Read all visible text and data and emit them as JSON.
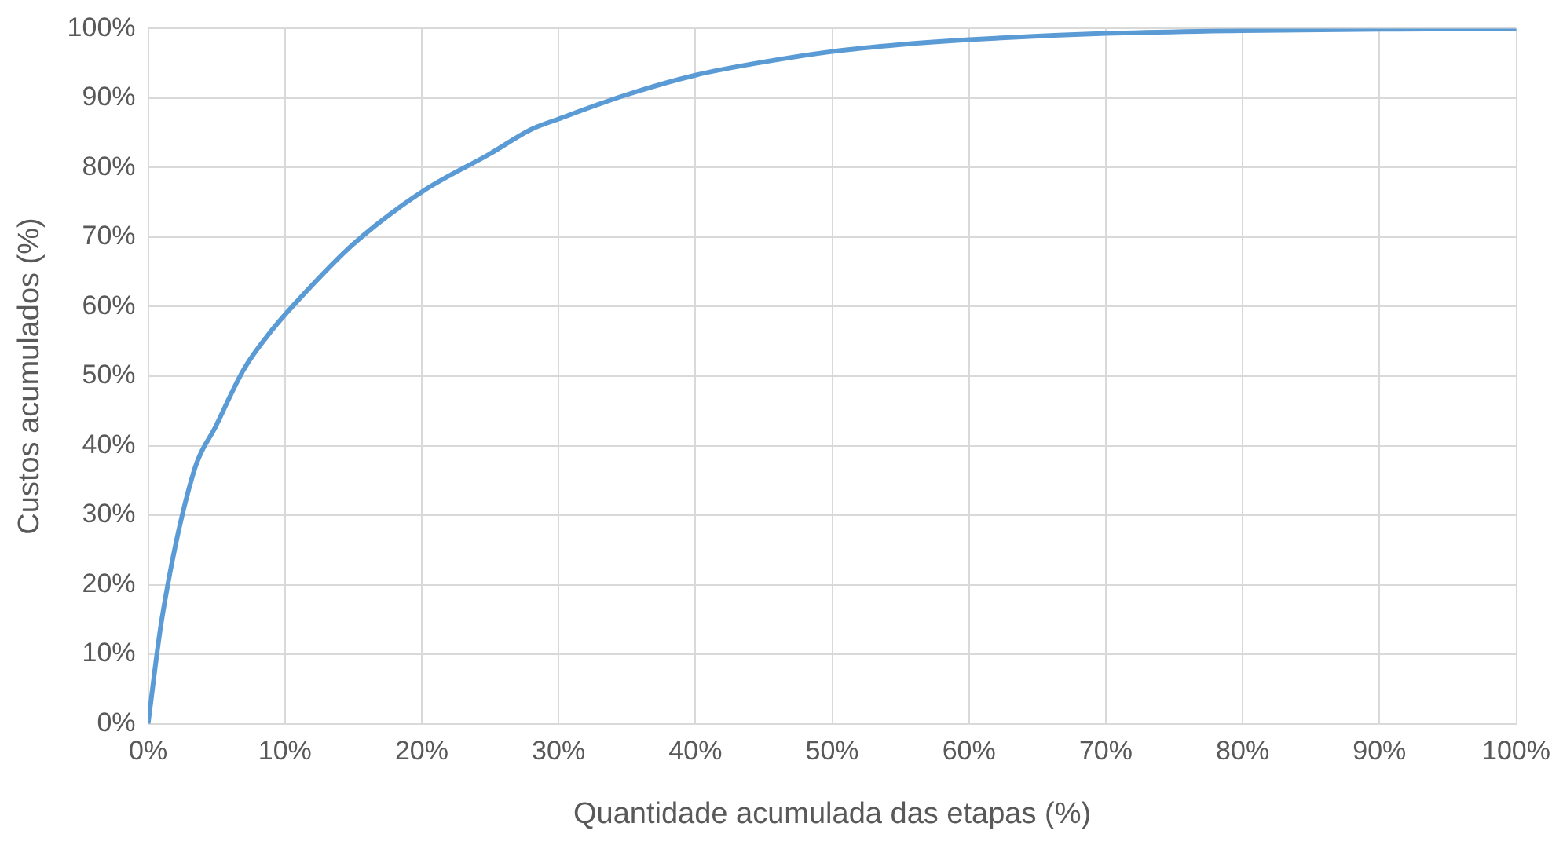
{
  "chart_data": {
    "type": "line",
    "xlabel": "Quantidade acumulada das etapas (%)",
    "ylabel": "Custos acumulados (%)",
    "x": [
      0,
      1,
      3.3,
      5,
      7,
      9,
      11,
      15,
      20,
      25,
      28,
      30,
      35,
      40,
      45,
      50,
      55,
      60,
      70,
      80,
      90,
      100
    ],
    "series": [
      {
        "color": "#5b9bd5",
        "values": [
          0,
          15,
          36,
          43,
          51,
          56.5,
          61,
          69,
          76.5,
          82,
          85.5,
          87,
          90.5,
          93.3,
          95.2,
          96.7,
          97.7,
          98.4,
          99.3,
          99.7,
          99.9,
          100
        ]
      }
    ],
    "xlim": [
      0,
      100
    ],
    "ylim": [
      0,
      100
    ],
    "xticks": [
      {
        "value": 0,
        "label": "0%"
      },
      {
        "value": 10,
        "label": "10%"
      },
      {
        "value": 20,
        "label": "20%"
      },
      {
        "value": 30,
        "label": "30%"
      },
      {
        "value": 40,
        "label": "40%"
      },
      {
        "value": 50,
        "label": "50%"
      },
      {
        "value": 60,
        "label": "60%"
      },
      {
        "value": 70,
        "label": "70%"
      },
      {
        "value": 80,
        "label": "80%"
      },
      {
        "value": 90,
        "label": "90%"
      },
      {
        "value": 100,
        "label": "100%"
      }
    ],
    "yticks": [
      {
        "value": 0,
        "label": "0%"
      },
      {
        "value": 10,
        "label": "10%"
      },
      {
        "value": 20,
        "label": "20%"
      },
      {
        "value": 30,
        "label": "30%"
      },
      {
        "value": 40,
        "label": "40%"
      },
      {
        "value": 50,
        "label": "50%"
      },
      {
        "value": 60,
        "label": "60%"
      },
      {
        "value": 70,
        "label": "70%"
      },
      {
        "value": 80,
        "label": "80%"
      },
      {
        "value": 90,
        "label": "90%"
      },
      {
        "value": 100,
        "label": "100%"
      }
    ],
    "grid": true,
    "legend": false,
    "marker": "none",
    "line_style": "solid"
  }
}
